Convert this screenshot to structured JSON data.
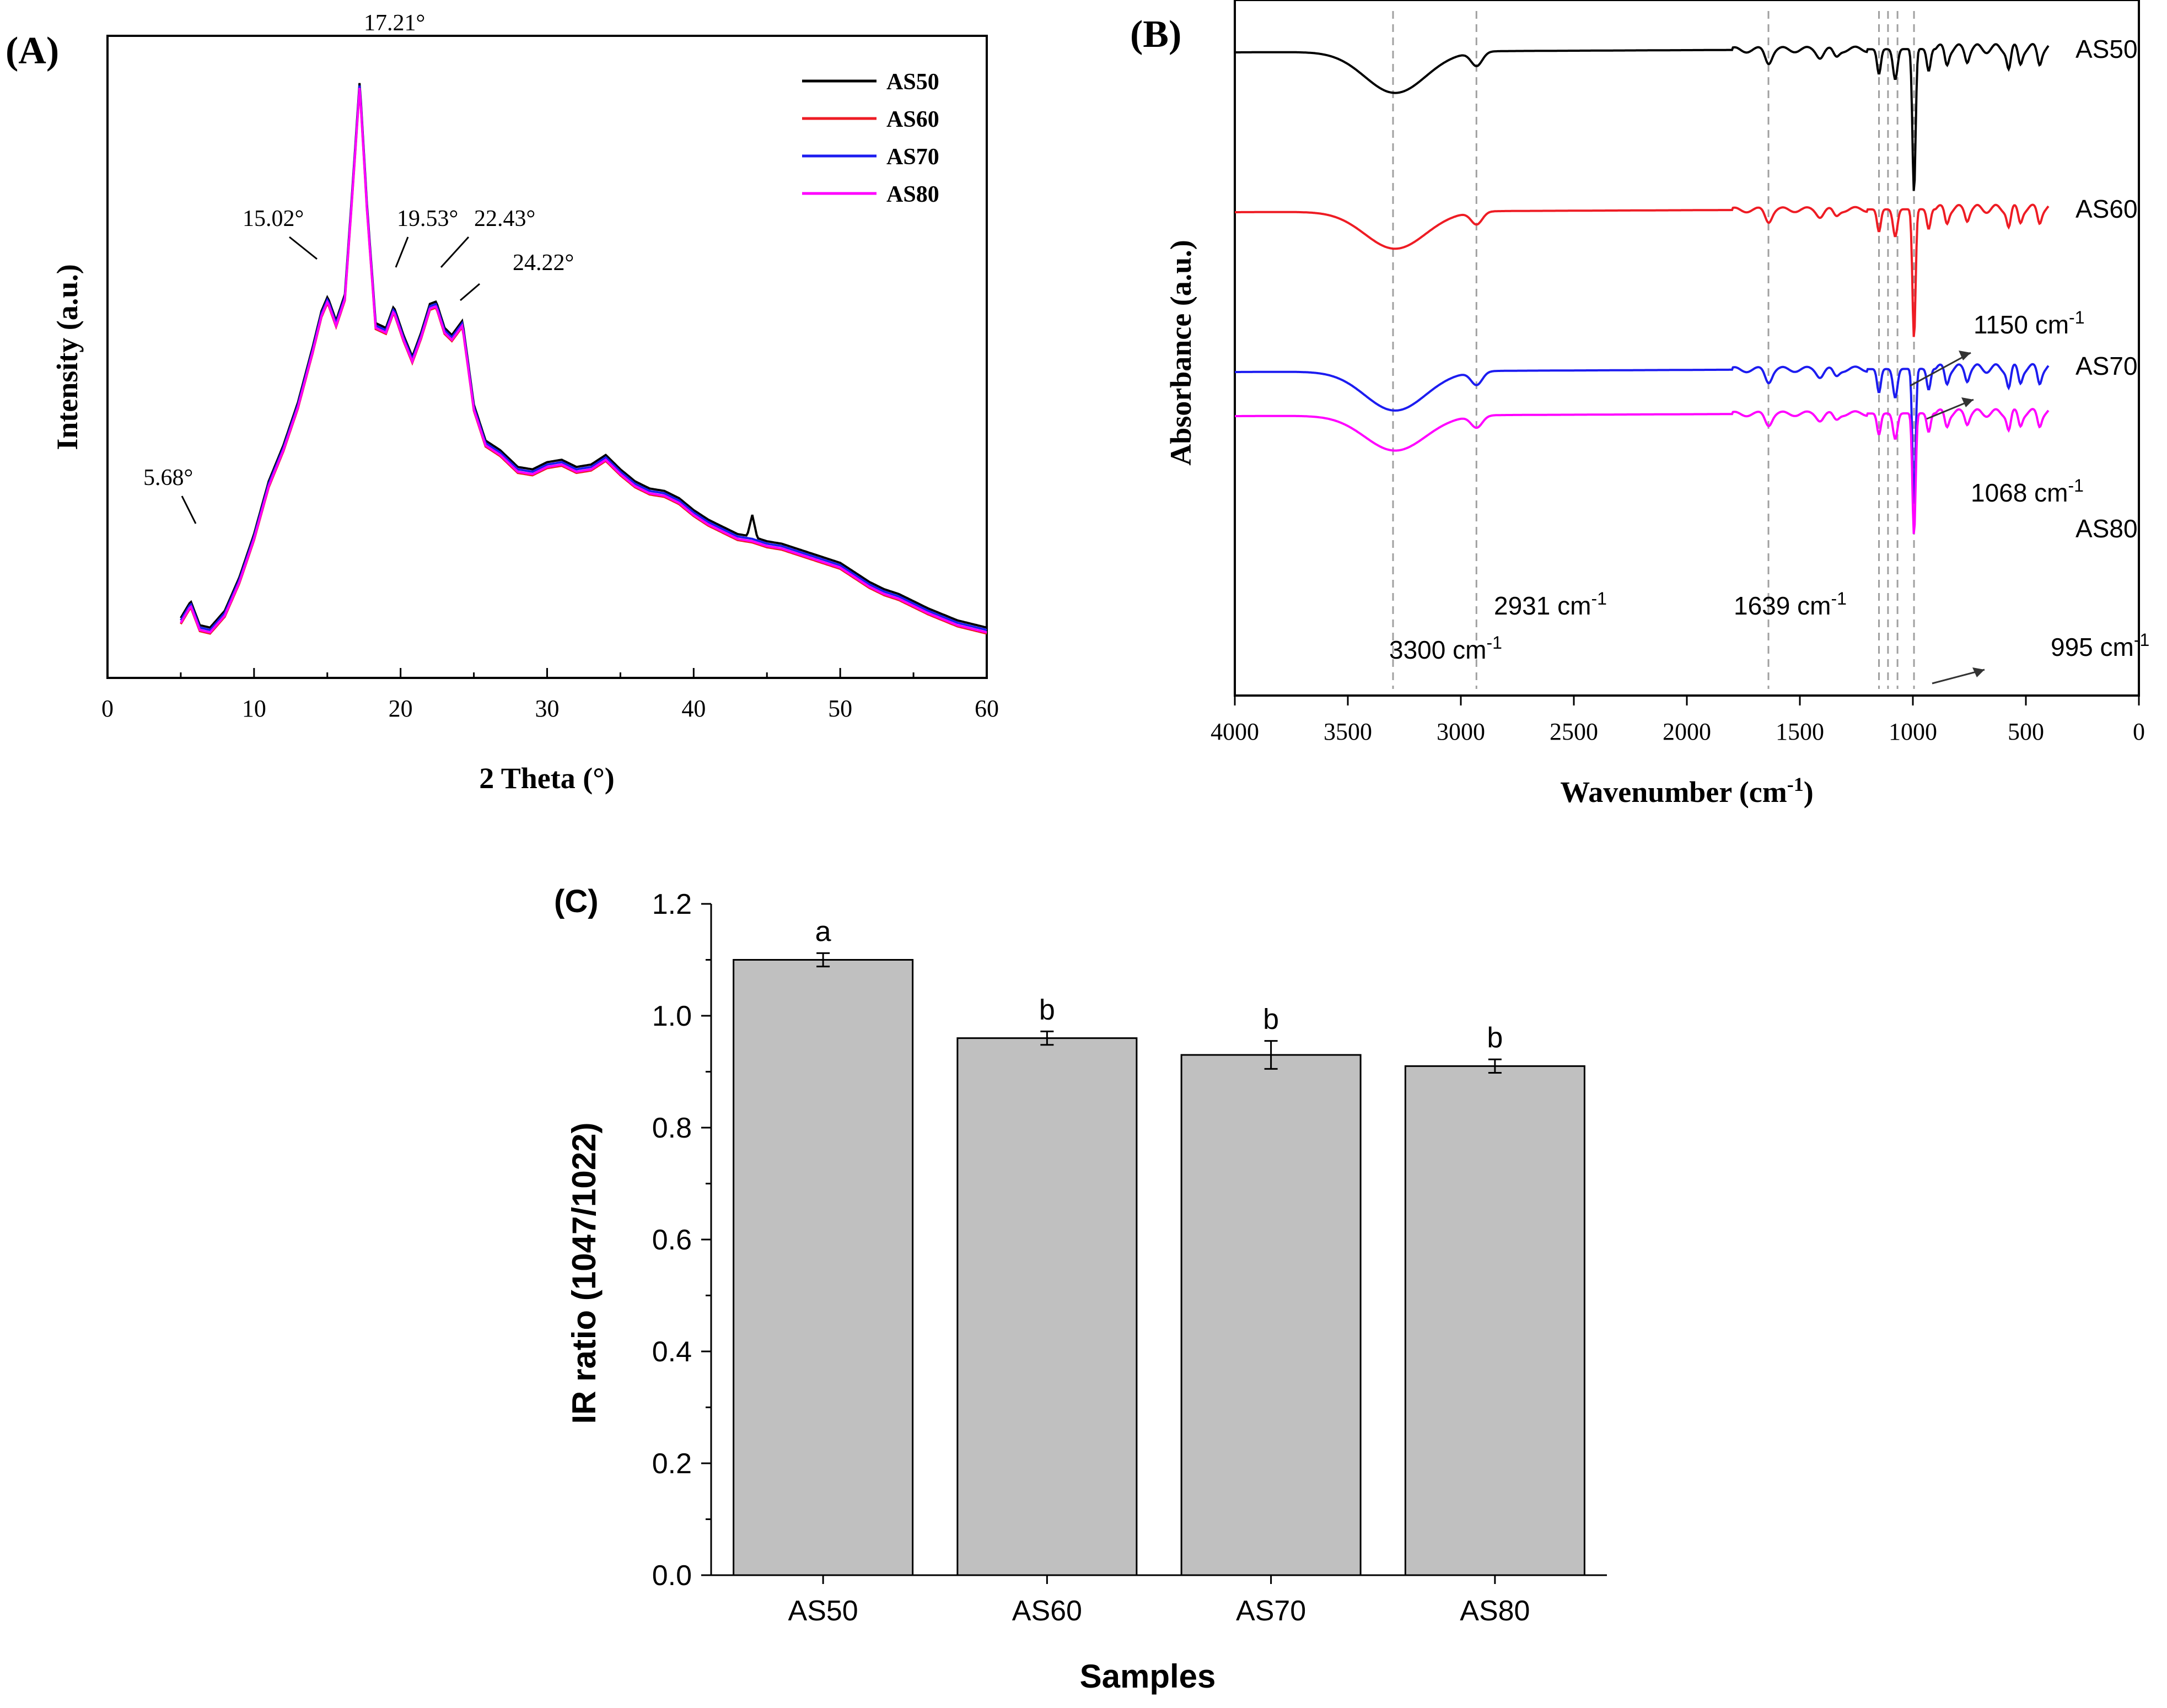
{
  "chart_data": [
    {
      "panel_label": "(A)",
      "type": "line",
      "xlabel": "2 Theta (°)",
      "ylabel": "Intensity (a.u.)",
      "xlim": [
        0,
        60
      ],
      "xticks": [
        0,
        10,
        20,
        30,
        40,
        50,
        60
      ],
      "tick_labels": [
        "0",
        "10",
        "20",
        "30",
        "40",
        "50",
        "60"
      ],
      "legend_position": "top-right",
      "series": [
        {
          "name": "AS50",
          "color": "#000000"
        },
        {
          "name": "AS60",
          "color": "#ee1c24"
        },
        {
          "name": "AS70",
          "color": "#1c1cf0"
        },
        {
          "name": "AS80",
          "color": "#ff00ff"
        }
      ],
      "base_profile": {
        "x": [
          5,
          5.68,
          6.3,
          7,
          8,
          9,
          10,
          11,
          12,
          13,
          14,
          14.6,
          15.02,
          15.6,
          16.2,
          16.7,
          17.21,
          17.7,
          18.3,
          19,
          19.53,
          20.2,
          20.8,
          21.4,
          22.0,
          22.43,
          23.0,
          23.5,
          24.22,
          25,
          25.8,
          26.8,
          28,
          29,
          30,
          31,
          32,
          33,
          34,
          35,
          36,
          37,
          38,
          39,
          40,
          41,
          42,
          43,
          44,
          45,
          46,
          47,
          48,
          49,
          50,
          51,
          52,
          53,
          54,
          55,
          56,
          57,
          58,
          59,
          60
        ],
        "y": [
          1.2,
          1.9,
          0.9,
          0.8,
          1.5,
          2.9,
          4.7,
          6.9,
          8.4,
          10.2,
          12.5,
          14.0,
          14.6,
          13.6,
          14.7,
          19.0,
          23.6,
          18.5,
          13.5,
          13.3,
          14.2,
          13.0,
          12.1,
          13.1,
          14.3,
          14.4,
          13.3,
          13.0,
          13.6,
          10.1,
          8.6,
          8.2,
          7.5,
          7.4,
          7.7,
          7.8,
          7.5,
          7.6,
          8.0,
          7.4,
          6.9,
          6.6,
          6.5,
          6.2,
          5.7,
          5.3,
          5.0,
          4.7,
          4.6,
          4.4,
          4.3,
          4.1,
          3.9,
          3.7,
          3.5,
          3.1,
          2.7,
          2.4,
          2.2,
          1.9,
          1.6,
          1.35,
          1.1,
          0.95,
          0.8
        ]
      },
      "series_offsets": {
        "AS50": 0.15,
        "AS60": -0.1,
        "AS70": 0.05,
        "AS80": -0.05
      },
      "annotations": [
        "5.68°",
        "15.02°",
        "17.21°",
        "19.53°",
        "22.43°",
        "24.22°"
      ],
      "annotation_x": [
        5.68,
        15.02,
        17.21,
        19.53,
        22.43,
        24.22
      ]
    },
    {
      "panel_label": "(B)",
      "type": "line",
      "xlabel": "Wavenumber (cm",
      "xlabel_sup": "-1",
      "xlabel_end": ")",
      "ylabel": "Absorbance (a.u.)",
      "xlim": [
        4000,
        0
      ],
      "plotted_range": [
        4000,
        400
      ],
      "xticks": [
        4000,
        3500,
        3000,
        2500,
        2000,
        1500,
        1000,
        500,
        0
      ],
      "tick_labels": [
        "4000",
        "3500",
        "3000",
        "2500",
        "2000",
        "1500",
        "1000",
        "500",
        "0"
      ],
      "series": [
        {
          "name": "AS50",
          "color": "#000000"
        },
        {
          "name": "AS60",
          "color": "#ee1c24"
        },
        {
          "name": "AS70",
          "color": "#1c1cf0"
        },
        {
          "name": "AS80",
          "color": "#ff00ff"
        }
      ],
      "peaks_cm1": [
        3300,
        2931,
        1639,
        1150,
        1068,
        995
      ],
      "reference_lines_cm1": [
        3300,
        2931,
        1639,
        1150,
        1110,
        1068,
        995
      ],
      "annotations": [
        {
          "value": "3300 cm",
          "sup": "-1"
        },
        {
          "value": "2931 cm",
          "sup": "-1"
        },
        {
          "value": "1639 cm",
          "sup": "-1"
        },
        {
          "value": "1150 cm",
          "sup": "-1"
        },
        {
          "value": "1068 cm",
          "sup": "-1"
        },
        {
          "value": "995 cm",
          "sup": "-1"
        }
      ]
    },
    {
      "panel_label": "(C)",
      "type": "bar",
      "title": "",
      "xlabel": "Samples",
      "ylabel": "IR ratio (1047/1022)",
      "ylim": [
        0,
        1.2
      ],
      "yticks": [
        0.0,
        0.2,
        0.4,
        0.6,
        0.8,
        1.0,
        1.2
      ],
      "ytick_labels": [
        "0.0",
        "0.2",
        "0.4",
        "0.6",
        "0.8",
        "1.0",
        "1.2"
      ],
      "categories": [
        "AS50",
        "AS60",
        "AS70",
        "AS80"
      ],
      "values": [
        1.1,
        0.96,
        0.93,
        0.91
      ],
      "errors": [
        0.012,
        0.012,
        0.025,
        0.012
      ],
      "significance": [
        "a",
        "b",
        "b",
        "b"
      ],
      "bar_color": "#c0c0c0"
    }
  ]
}
